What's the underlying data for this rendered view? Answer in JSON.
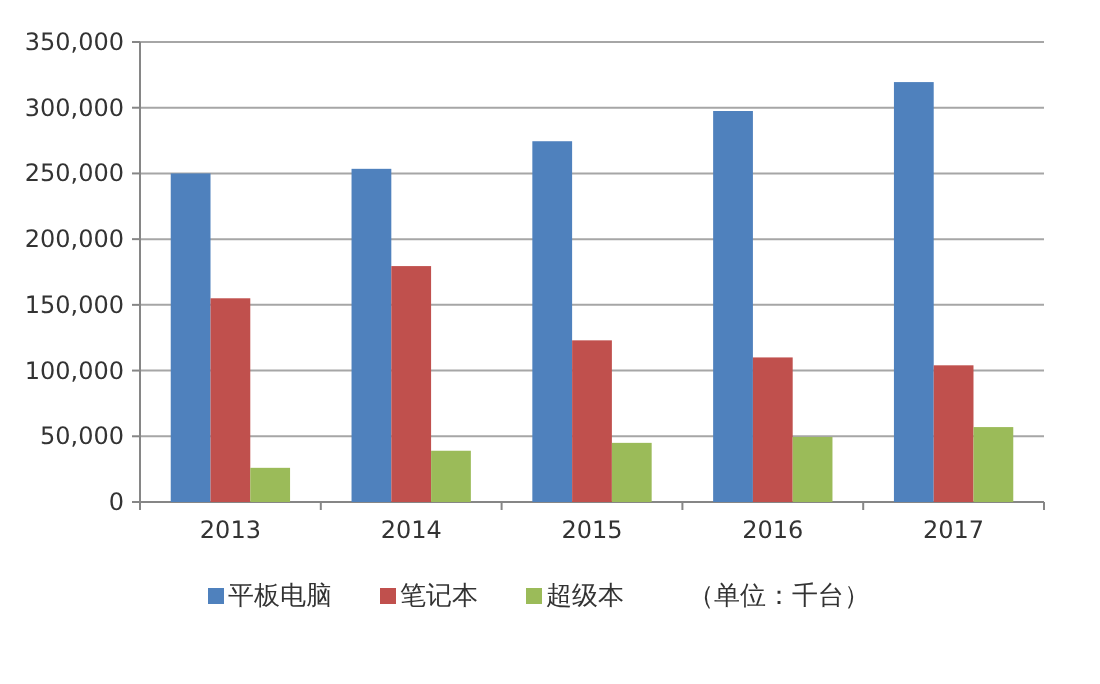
{
  "chart_data": {
    "type": "bar",
    "categories": [
      "2013",
      "2014",
      "2015",
      "2016",
      "2017"
    ],
    "series": [
      {
        "name": "平板电脑",
        "color": "#4f81bd",
        "values": [
          250000,
          253500,
          274500,
          297500,
          319500
        ]
      },
      {
        "name": "笔记本",
        "color": "#c0504d",
        "values": [
          155000,
          179500,
          123000,
          110000,
          104000
        ]
      },
      {
        "name": "超级本",
        "color": "#9bbb59",
        "values": [
          26000,
          39000,
          45000,
          49500,
          57000
        ]
      }
    ],
    "ylim": [
      0,
      350000
    ],
    "yticks": [
      {
        "value": 0,
        "label": "0"
      },
      {
        "value": 50000,
        "label": "50,000"
      },
      {
        "value": 100000,
        "label": "100,000"
      },
      {
        "value": 150000,
        "label": "150,000"
      },
      {
        "value": 200000,
        "label": "200,000"
      },
      {
        "value": 250000,
        "label": "250,000"
      },
      {
        "value": 300000,
        "label": "300,000"
      },
      {
        "value": 350000,
        "label": "350,000"
      }
    ],
    "grid": "y",
    "legend": "bottom",
    "annotations": [
      "（单位：千台）"
    ]
  }
}
